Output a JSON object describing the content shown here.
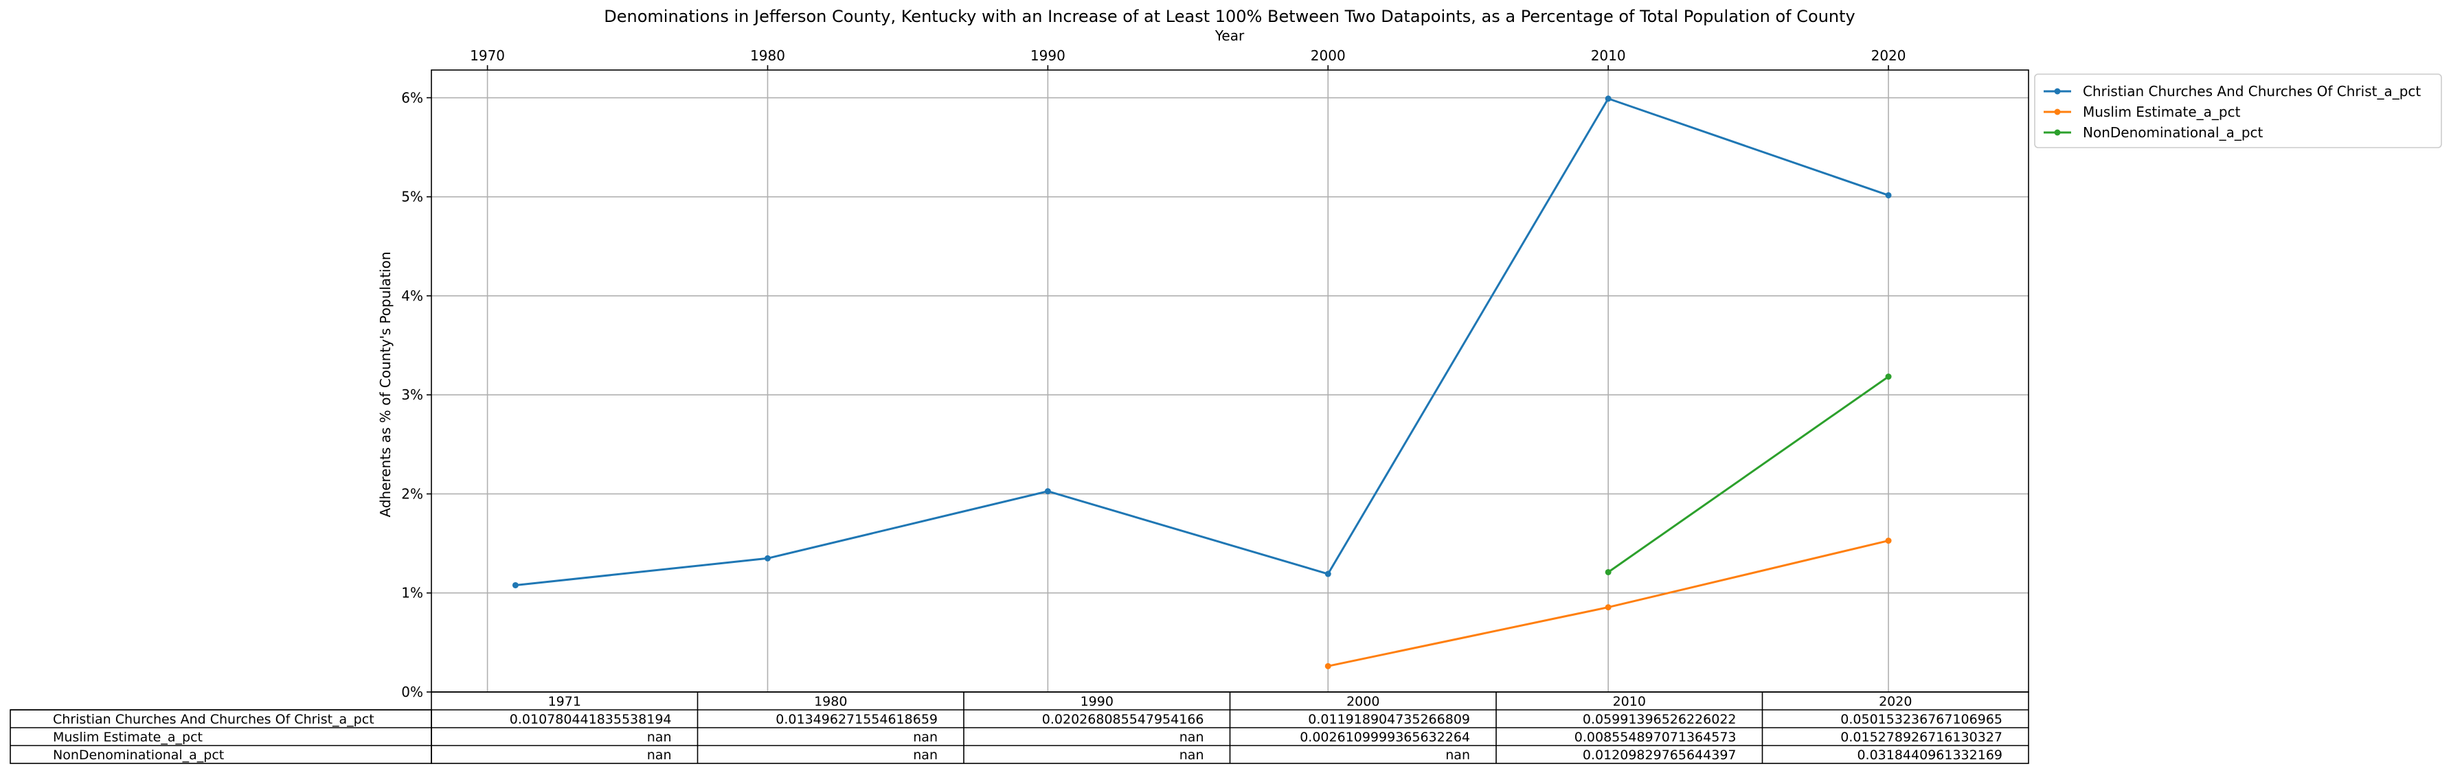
{
  "chart_data": {
    "type": "line",
    "title": "Denominations in Jefferson County, Kentucky with an Increase of at Least 100% Between Two Datapoints, as a Percentage of Total Population of County",
    "xlabel": "Year",
    "ylabel": "Adherents as % of County's Population",
    "xlim": [
      1968,
      2025
    ],
    "ylim": [
      0,
      0.0628
    ],
    "x_ticks": [
      1970,
      1980,
      1990,
      2000,
      2010,
      2020
    ],
    "y_ticks": [
      0,
      0.01,
      0.02,
      0.03,
      0.04,
      0.05,
      0.06
    ],
    "y_tick_labels": [
      "0%",
      "1%",
      "2%",
      "3%",
      "4%",
      "5%",
      "6%"
    ],
    "grid": true,
    "legend_position": "outside top-right",
    "x": [
      1971,
      1980,
      1990,
      2000,
      2010,
      2020
    ],
    "series": [
      {
        "name": "Christian Churches And Churches Of Christ_a_pct",
        "color": "#1f77b4",
        "values": [
          0.010780441835538194,
          0.013496271554618659,
          0.020268085547954166,
          0.011918904735266809,
          0.05991396526226022,
          0.050153236767106965
        ]
      },
      {
        "name": "Muslim Estimate_a_pct",
        "color": "#ff7f0e",
        "values": [
          null,
          null,
          null,
          0.0026109999365632264,
          0.008554897071364573,
          0.015278926716130327
        ]
      },
      {
        "name": "NonDenominational_a_pct",
        "color": "#2ca02c",
        "values": [
          null,
          null,
          null,
          null,
          0.01209829765644397,
          0.0318440961332169
        ]
      }
    ],
    "table": {
      "columns": [
        "1971",
        "1980",
        "1990",
        "2000",
        "2010",
        "2020"
      ],
      "rows": [
        {
          "label": "Christian Churches And Churches Of Christ_a_pct",
          "cells": [
            "0.010780441835538194",
            "0.013496271554618659",
            "0.020268085547954166",
            "0.011918904735266809",
            "0.05991396526226022",
            "0.050153236767106965"
          ]
        },
        {
          "label": "Muslim Estimate_a_pct",
          "cells": [
            "nan",
            "nan",
            "nan",
            "0.0026109999365632264",
            "0.008554897071364573",
            "0.015278926716130327"
          ]
        },
        {
          "label": "NonDenominational_a_pct",
          "cells": [
            "nan",
            "nan",
            "nan",
            "nan",
            "0.01209829765644397",
            "0.0318440961332169"
          ]
        }
      ]
    }
  }
}
